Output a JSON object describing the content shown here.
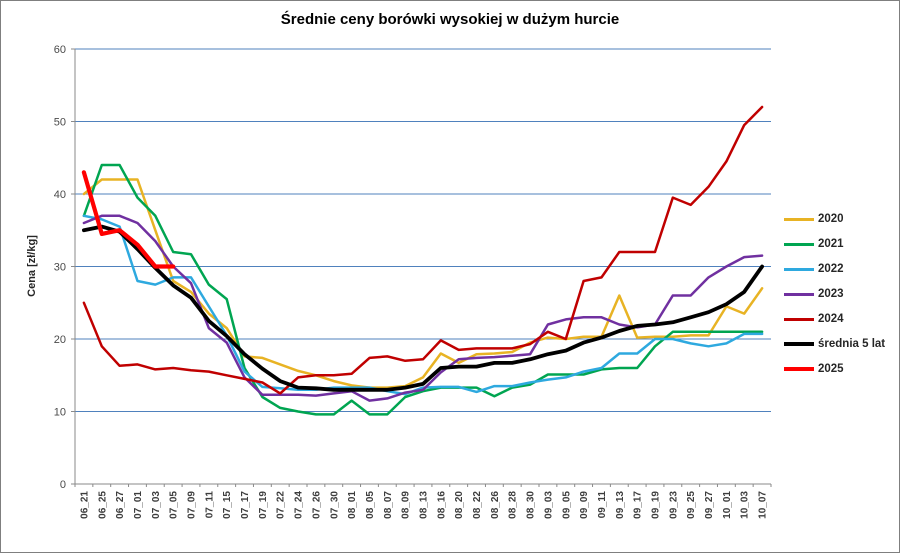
{
  "chart_data": {
    "type": "line",
    "title": "Średnie ceny borówki wysokiej w dużym hurcie",
    "ylabel": "Cena [zł/kg]",
    "xlabel": "",
    "ylim": [
      0,
      60
    ],
    "yticks": [
      0,
      10,
      20,
      30,
      40,
      50,
      60
    ],
    "grid": "horizontal",
    "gridline_color": "#4F81BD",
    "axis_color": "#8a8a8a",
    "legend_position": "right",
    "xtick_rotation": -90,
    "categories": [
      "06_21",
      "06_25",
      "06_27",
      "07_01",
      "07_03",
      "07_05",
      "07_09",
      "07_11",
      "07_15",
      "07_17",
      "07_19",
      "07_22",
      "07_24",
      "07_26",
      "07_30",
      "08_01",
      "08_05",
      "08_07",
      "08_09",
      "08_13",
      "08_16",
      "08_20",
      "08_22",
      "08_26",
      "08_28",
      "08_30",
      "09_03",
      "09_05",
      "09_09",
      "09_11",
      "09_13",
      "09_17",
      "09_19",
      "09_23",
      "09_25",
      "09_27",
      "10_01",
      "10_03",
      "10_07"
    ],
    "series": [
      {
        "name": "2020",
        "color": "#E8B324",
        "width": 2.5,
        "values": [
          40,
          42,
          42,
          42,
          35,
          28,
          26.5,
          23.5,
          21.5,
          17.6,
          17.4,
          16.5,
          15.6,
          15,
          14.2,
          13.6,
          13.3,
          13.3,
          13.5,
          14.7,
          18,
          16.7,
          17.9,
          18,
          18.2,
          19.5,
          20.2,
          20,
          20.3,
          20.3,
          26,
          20.2,
          20.3,
          20.3,
          20.5,
          20.5,
          24.5,
          23.5,
          27
        ]
      },
      {
        "name": "2021",
        "color": "#00A551",
        "width": 2.5,
        "values": [
          37,
          44,
          44,
          39.5,
          37,
          32,
          31.7,
          27.5,
          25.5,
          16,
          12,
          10.5,
          10,
          9.6,
          9.6,
          11.5,
          9.6,
          9.6,
          12,
          12.8,
          13.3,
          13.3,
          13.3,
          12.1,
          13.3,
          13.7,
          15.1,
          15.1,
          15.1,
          15.8,
          16,
          16,
          19,
          21,
          21,
          21,
          21,
          21,
          21
        ]
      },
      {
        "name": "2022",
        "color": "#2EA9DF",
        "width": 2.5,
        "values": [
          37,
          36.5,
          35.5,
          28,
          27.5,
          28.5,
          28.5,
          24.5,
          20.5,
          15.5,
          13.4,
          13.2,
          13,
          13,
          13.3,
          13.3,
          13.3,
          12.8,
          12.4,
          13.3,
          13.4,
          13.4,
          12.7,
          13.5,
          13.5,
          14,
          14.4,
          14.7,
          15.5,
          16,
          18,
          18,
          20,
          20,
          19.4,
          19,
          19.4,
          20.7,
          20.7
        ]
      },
      {
        "name": "2023",
        "color": "#7030A0",
        "width": 2.5,
        "values": [
          36,
          37,
          37,
          36,
          33.5,
          30,
          27.7,
          21.5,
          19.5,
          14.7,
          12.3,
          12.3,
          12.3,
          12.2,
          12.5,
          12.8,
          11.5,
          11.8,
          12.6,
          13,
          15.4,
          17.2,
          17.4,
          17.5,
          17.7,
          17.9,
          22,
          22.7,
          23,
          23,
          22,
          21.6,
          22,
          26,
          26,
          28.5,
          30,
          31.3,
          31.5
        ]
      },
      {
        "name": "2024",
        "color": "#C00000",
        "width": 2.5,
        "values": [
          25,
          19,
          16.3,
          16.5,
          15.8,
          16,
          15.7,
          15.5,
          15,
          14.5,
          14,
          12.5,
          14.7,
          15,
          15,
          15.2,
          17.4,
          17.6,
          17,
          17.2,
          19.8,
          18.5,
          18.7,
          18.7,
          18.7,
          19.3,
          21,
          20,
          28,
          28.5,
          32,
          32,
          32,
          39.5,
          38.5,
          41,
          44.5,
          49.5,
          52
        ]
      },
      {
        "name": "średnia 5 lat",
        "color": "#000000",
        "width": 3.8,
        "values": [
          35,
          35.5,
          34.8,
          32.4,
          29.8,
          27.4,
          25.7,
          22.5,
          20.4,
          17.9,
          15.9,
          14.2,
          13.3,
          13.2,
          13,
          13,
          13,
          13,
          13.3,
          13.8,
          16,
          16.2,
          16.2,
          16.7,
          16.7,
          17.2,
          17.9,
          18.4,
          19.5,
          20.2,
          21.1,
          21.8,
          22,
          22.3,
          23,
          23.7,
          24.8,
          26.5,
          30
        ]
      },
      {
        "name": "2025",
        "color": "#FF0000",
        "width": 4.2,
        "values": [
          43,
          34.5,
          35,
          33,
          30,
          30,
          null,
          null,
          null,
          null,
          null,
          null,
          null,
          null,
          null,
          null,
          null,
          null,
          null,
          null,
          null,
          null,
          null,
          null,
          null,
          null,
          null,
          null,
          null,
          null,
          null,
          null,
          null,
          null,
          null,
          null,
          null,
          null,
          null
        ]
      }
    ]
  }
}
